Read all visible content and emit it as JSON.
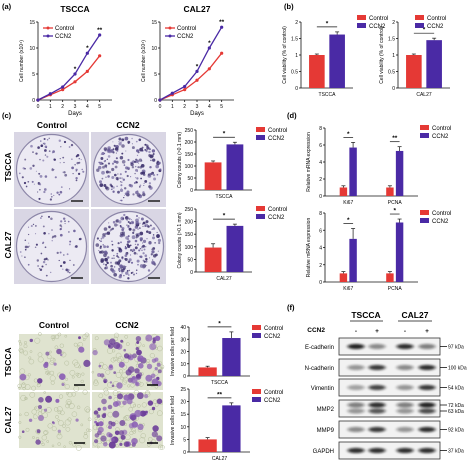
{
  "colors": {
    "control": "#e53935",
    "ccn2": "#4a2aa5",
    "axis": "#111111"
  },
  "panel_letters": [
    "(a)",
    "(b)",
    "(c)",
    "(d)",
    "(e)",
    "(f)"
  ],
  "legend": {
    "control": "Control",
    "ccn2": "CCN2"
  },
  "chart_data": [
    {
      "id": "a1",
      "type": "line",
      "title": "TSCCA",
      "xlabel": "Days",
      "ylabel": "Cell number (x10⁴)",
      "x": [
        0,
        1,
        2,
        3,
        4,
        5
      ],
      "xlim": [
        0,
        6
      ],
      "ylim": [
        0,
        15
      ],
      "yticks": [
        0,
        5,
        10,
        15
      ],
      "series": [
        {
          "name": "Control",
          "values": [
            0,
            1.0,
            2.0,
            3.5,
            5.5,
            8.5
          ]
        },
        {
          "name": "CCN2",
          "values": [
            0,
            1.2,
            2.5,
            5.0,
            9.0,
            12.5
          ]
        }
      ],
      "annotations": [
        {
          "x": 3,
          "text": "*"
        },
        {
          "x": 4,
          "text": "*"
        },
        {
          "x": 5,
          "text": "**"
        }
      ],
      "legend": "top-left"
    },
    {
      "id": "a2",
      "type": "line",
      "title": "CAL27",
      "xlabel": "Days",
      "ylabel": "Cell number (x10⁴)",
      "x": [
        0,
        1,
        2,
        3,
        4,
        5
      ],
      "xlim": [
        0,
        6
      ],
      "ylim": [
        0,
        15
      ],
      "yticks": [
        0,
        5,
        10,
        15
      ],
      "series": [
        {
          "name": "Control",
          "values": [
            0,
            1.0,
            2.0,
            3.8,
            6.0,
            9.0
          ]
        },
        {
          "name": "CCN2",
          "values": [
            0,
            1.3,
            2.6,
            5.5,
            10.0,
            14.0
          ]
        }
      ],
      "annotations": [
        {
          "x": 3,
          "text": "*"
        },
        {
          "x": 4,
          "text": "*"
        },
        {
          "x": 5,
          "text": "**"
        }
      ],
      "legend": "top-left"
    },
    {
      "id": "b1",
      "type": "bar",
      "ylabel": "Cell viability (% of control)",
      "categories": [
        "TSCCA"
      ],
      "ylim": [
        0,
        2.0
      ],
      "yticks": [
        0,
        0.5,
        1.0,
        1.5,
        2.0
      ],
      "series": [
        {
          "name": "Control",
          "values": [
            1.0
          ],
          "err": [
            0.03
          ]
        },
        {
          "name": "CCN2",
          "values": [
            1.62
          ],
          "err": [
            0.08
          ]
        }
      ],
      "annotations": [
        {
          "text": "*"
        }
      ],
      "legend": "top-right"
    },
    {
      "id": "b2",
      "type": "bar",
      "ylabel": "Cell viability (% of control)",
      "categories": [
        "CAL27"
      ],
      "ylim": [
        0,
        2.0
      ],
      "yticks": [
        0,
        0.5,
        1.0,
        1.5,
        2.0
      ],
      "series": [
        {
          "name": "Control",
          "values": [
            1.0
          ],
          "err": [
            0.03
          ]
        },
        {
          "name": "CCN2",
          "values": [
            1.45
          ],
          "err": [
            0.06
          ]
        }
      ],
      "annotations": [
        {
          "text": "*"
        }
      ],
      "legend": "top-right"
    },
    {
      "id": "c1",
      "type": "bar",
      "ylabel": "Colony counts (>0.1 mm)",
      "categories": [
        "TSCCA"
      ],
      "ylim": [
        0,
        250
      ],
      "yticks": [
        0,
        50,
        100,
        150,
        200,
        250
      ],
      "series": [
        {
          "name": "Control",
          "values": [
            115
          ],
          "err": [
            6
          ]
        },
        {
          "name": "CCN2",
          "values": [
            190
          ],
          "err": [
            9
          ]
        }
      ],
      "annotations": [
        {
          "text": "*"
        }
      ],
      "legend": "top-right"
    },
    {
      "id": "c2",
      "type": "bar",
      "ylabel": "Colony counts (>0.1 mm)",
      "categories": [
        "CAL27"
      ],
      "ylim": [
        0,
        250
      ],
      "yticks": [
        0,
        50,
        100,
        150,
        200,
        250
      ],
      "series": [
        {
          "name": "Control",
          "values": [
            97
          ],
          "err": [
            15
          ]
        },
        {
          "name": "CCN2",
          "values": [
            183
          ],
          "err": [
            7
          ]
        }
      ],
      "annotations": [
        {
          "text": "*"
        }
      ],
      "legend": "top-right"
    },
    {
      "id": "d1",
      "type": "bar",
      "ylabel": "Relative mRNA expression",
      "categories": [
        "Ki67",
        "PCNA"
      ],
      "ylim": [
        0,
        8
      ],
      "yticks": [
        0,
        2,
        4,
        6,
        8
      ],
      "series": [
        {
          "name": "Control",
          "values": [
            1.0,
            1.0
          ],
          "err": [
            0.2,
            0.2
          ]
        },
        {
          "name": "CCN2",
          "values": [
            5.7,
            5.3
          ],
          "err": [
            0.6,
            0.5
          ]
        }
      ],
      "annotations": [
        {
          "text": "*"
        },
        {
          "text": "**"
        }
      ],
      "legend": "top-right"
    },
    {
      "id": "d2",
      "type": "bar",
      "ylabel": "Relative mRNA expression",
      "categories": [
        "Ki67",
        "PCNA"
      ],
      "ylim": [
        0,
        8
      ],
      "yticks": [
        0,
        2,
        4,
        6,
        8
      ],
      "series": [
        {
          "name": "Control",
          "values": [
            1.0,
            1.0
          ],
          "err": [
            0.2,
            0.2
          ]
        },
        {
          "name": "CCN2",
          "values": [
            5.0,
            6.9
          ],
          "err": [
            1.2,
            0.4
          ]
        }
      ],
      "annotations": [
        {
          "text": "*"
        },
        {
          "text": "*"
        }
      ],
      "legend": "top-right"
    },
    {
      "id": "e1",
      "type": "bar",
      "ylabel": "Invasive cells per field",
      "categories": [
        "TSCCA"
      ],
      "ylim": [
        0,
        40
      ],
      "yticks": [
        0,
        10,
        20,
        30,
        40
      ],
      "series": [
        {
          "name": "Control",
          "values": [
            7
          ],
          "err": [
            1
          ]
        },
        {
          "name": "CCN2",
          "values": [
            31
          ],
          "err": [
            5
          ]
        }
      ],
      "annotations": [
        {
          "text": "*"
        }
      ],
      "legend": "top-left"
    },
    {
      "id": "e2",
      "type": "bar",
      "ylabel": "Invasive cells per field",
      "categories": [
        "CAL27"
      ],
      "ylim": [
        0,
        25
      ],
      "yticks": [
        0,
        5,
        10,
        15,
        20,
        25
      ],
      "series": [
        {
          "name": "Control",
          "values": [
            5
          ],
          "err": [
            0.7
          ]
        },
        {
          "name": "CCN2",
          "values": [
            18.5
          ],
          "err": [
            1.0
          ]
        }
      ],
      "annotations": [
        {
          "text": "**"
        }
      ],
      "legend": "top-left"
    }
  ],
  "panel_c": {
    "columns": [
      "Control",
      "CCN2"
    ],
    "rows": [
      "TSCCA",
      "CAL27"
    ],
    "colony_density": [
      [
        0.35,
        0.75
      ],
      [
        0.3,
        0.95
      ]
    ]
  },
  "panel_e": {
    "columns": [
      "Control",
      "CCN2"
    ],
    "rows": [
      "TSCCA",
      "CAL27"
    ],
    "stain_density": [
      [
        0.12,
        0.5
      ],
      [
        0.12,
        0.55
      ]
    ]
  },
  "panel_f": {
    "cell_lines": [
      "TSCCA",
      "CAL27"
    ],
    "ccn2_row_label": "CCN2",
    "lanes": [
      "-",
      "+",
      "-",
      "+"
    ],
    "blots": [
      {
        "name": "E-cadherin",
        "kda": "97 kDa",
        "intensity": [
          0.9,
          0.45,
          0.85,
          0.5
        ]
      },
      {
        "name": "N-cadherin",
        "kda": "100 kDa",
        "intensity": [
          0.4,
          0.8,
          0.45,
          0.85
        ]
      },
      {
        "name": "Vimentin",
        "kda": "54 kDa",
        "intensity": [
          0.35,
          0.75,
          0.4,
          0.8
        ]
      },
      {
        "name": "MMP2",
        "kda": [
          "72 kDa",
          "63 kDa"
        ],
        "intensity": [
          0.5,
          0.85,
          0.5,
          0.9
        ]
      },
      {
        "name": "MMP9",
        "kda": "92 kDa",
        "intensity": [
          0.45,
          0.8,
          0.4,
          0.85
        ]
      },
      {
        "name": "GAPDH",
        "kda": "37 kDa",
        "intensity": [
          0.85,
          0.85,
          0.85,
          0.85
        ]
      }
    ]
  }
}
